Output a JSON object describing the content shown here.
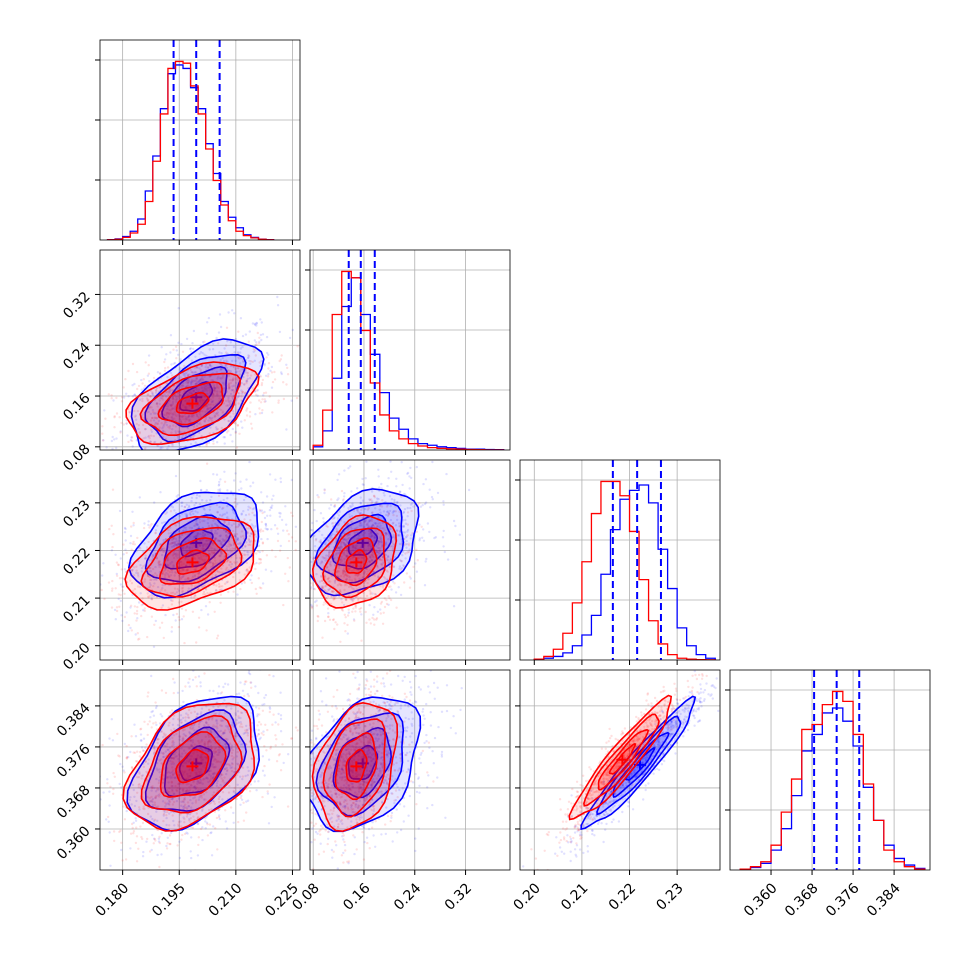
{
  "chart_data": {
    "type": "corner",
    "grid": true,
    "colors": {
      "series_a": "#0000ff",
      "series_b": "#ff0000",
      "grid": "#b0b0b0",
      "frame": "#000000"
    },
    "series": [
      {
        "color": "#0000ff"
      },
      {
        "color": "#ff0000"
      }
    ],
    "params": [
      {
        "range": [
          0.174,
          0.227
        ],
        "ticks": [
          "0.180",
          "0.195",
          "0.210",
          "0.225"
        ],
        "tick_values": [
          0.18,
          0.195,
          0.21,
          0.225
        ]
      },
      {
        "range": [
          0.075,
          0.39
        ],
        "ticks": [
          "0.08",
          "0.16",
          "0.24",
          "0.32"
        ],
        "tick_values": [
          0.08,
          0.16,
          0.24,
          0.32
        ]
      },
      {
        "range": [
          0.197,
          0.239
        ],
        "ticks": [
          "0.20",
          "0.21",
          "0.22",
          "0.23"
        ],
        "tick_values": [
          0.2,
          0.21,
          0.22,
          0.23
        ]
      },
      {
        "range": [
          0.352,
          0.391
        ],
        "ticks": [
          "0.360",
          "0.368",
          "0.376",
          "0.384"
        ],
        "tick_values": [
          0.36,
          0.368,
          0.376,
          0.384
        ]
      }
    ],
    "quantile_lines": [
      [
        0.1935,
        0.1995,
        0.2057
      ],
      [
        0.136,
        0.155,
        0.177
      ],
      [
        0.2165,
        0.2216,
        0.2266
      ],
      [
        0.3684,
        0.3728,
        0.3772
      ]
    ],
    "marginals": [
      {
        "bin_edges": [
          0.176,
          0.178,
          0.18,
          0.182,
          0.184,
          0.186,
          0.188,
          0.19,
          0.192,
          0.194,
          0.196,
          0.198,
          0.2,
          0.202,
          0.204,
          0.206,
          0.208,
          0.21,
          0.212,
          0.214,
          0.216,
          0.218,
          0.22
        ],
        "series_a": [
          0.2,
          0.6,
          2,
          5,
          12,
          28,
          48,
          75,
          95,
          100,
          98,
          87,
          75,
          55,
          38,
          22,
          13,
          7,
          3,
          1.5,
          0.5,
          0.2
        ],
        "series_b": [
          0.1,
          0.4,
          1.5,
          4,
          9,
          22,
          45,
          72,
          98,
          102,
          101,
          88,
          72,
          52,
          34,
          20,
          11,
          5,
          2.5,
          1.2,
          0.4,
          0.1
        ]
      },
      {
        "bin_edges": [
          0.08,
          0.095,
          0.11,
          0.125,
          0.14,
          0.155,
          0.17,
          0.185,
          0.2,
          0.215,
          0.23,
          0.245,
          0.26,
          0.275,
          0.29,
          0.305,
          0.32,
          0.335,
          0.35,
          0.365,
          0.38
        ],
        "series_a": [
          2,
          12,
          45,
          90,
          108,
          85,
          60,
          36,
          20,
          13,
          7,
          4,
          3,
          2,
          1.5,
          1,
          0.5,
          0.5,
          0.3,
          0.2
        ],
        "series_b": [
          3,
          25,
          85,
          112,
          108,
          75,
          42,
          22,
          12,
          7,
          4,
          2.5,
          1.5,
          1,
          0.7,
          0.5,
          0.3,
          0.2,
          0.1,
          0.1
        ]
      },
      {
        "bin_edges": [
          0.2,
          0.202,
          0.204,
          0.206,
          0.208,
          0.21,
          0.212,
          0.214,
          0.216,
          0.218,
          0.22,
          0.222,
          0.224,
          0.226,
          0.228,
          0.23,
          0.232,
          0.234,
          0.236,
          0.238
        ],
        "series_a": [
          0.2,
          1,
          2,
          4,
          8,
          14,
          25,
          48,
          73,
          90,
          95,
          98,
          88,
          62,
          40,
          18,
          8,
          3,
          1
        ],
        "series_b": [
          0.5,
          2,
          6,
          15,
          32,
          55,
          82,
          100,
          100,
          92,
          72,
          45,
          22,
          9,
          3,
          1,
          0.5,
          0.2,
          0.1
        ]
      },
      {
        "bin_edges": [
          0.354,
          0.356,
          0.358,
          0.36,
          0.362,
          0.364,
          0.366,
          0.368,
          0.37,
          0.372,
          0.374,
          0.376,
          0.378,
          0.38,
          0.382,
          0.384,
          0.386,
          0.388,
          0.39
        ],
        "series_a": [
          0.5,
          1.5,
          4,
          12,
          25,
          45,
          72,
          82,
          95,
          98,
          90,
          75,
          50,
          30,
          15,
          7,
          3,
          1
        ],
        "series_b": [
          0.5,
          2,
          5,
          15,
          35,
          55,
          85,
          88,
          100,
          108,
          102,
          82,
          52,
          30,
          12,
          5,
          2,
          0.5
        ]
      }
    ],
    "pairs": [
      {
        "x": 0,
        "y": 1,
        "series_a": {
          "center": [
            0.1995,
            0.158
          ],
          "sigma": [
            0.0085,
            0.045
          ],
          "rho": 0.55
        },
        "series_b": {
          "center": [
            0.1985,
            0.148
          ],
          "sigma": [
            0.0085,
            0.032
          ],
          "rho": 0.45
        }
      },
      {
        "x": 0,
        "y": 2,
        "series_a": {
          "center": [
            0.1995,
            0.2216
          ],
          "sigma": [
            0.0085,
            0.0055
          ],
          "rho": 0.42
        },
        "series_b": {
          "center": [
            0.1985,
            0.2175
          ],
          "sigma": [
            0.0085,
            0.0048
          ],
          "rho": 0.38
        }
      },
      {
        "x": 1,
        "y": 2,
        "series_a": {
          "center": [
            0.158,
            0.2216
          ],
          "sigma": [
            0.045,
            0.0055
          ],
          "rho": 0.35
        },
        "series_b": {
          "center": [
            0.148,
            0.2175
          ],
          "sigma": [
            0.032,
            0.0048
          ],
          "rho": 0.3
        }
      },
      {
        "x": 0,
        "y": 3,
        "series_a": {
          "center": [
            0.1995,
            0.3728
          ],
          "sigma": [
            0.0085,
            0.0065
          ],
          "rho": 0.42
        },
        "series_b": {
          "center": [
            0.1985,
            0.3722
          ],
          "sigma": [
            0.0085,
            0.0062
          ],
          "rho": 0.38
        }
      },
      {
        "x": 1,
        "y": 3,
        "series_a": {
          "center": [
            0.158,
            0.3728
          ],
          "sigma": [
            0.045,
            0.0065
          ],
          "rho": 0.35
        },
        "series_b": {
          "center": [
            0.148,
            0.3722
          ],
          "sigma": [
            0.032,
            0.0062
          ],
          "rho": 0.3
        }
      },
      {
        "x": 2,
        "y": 3,
        "series_a": {
          "center": [
            0.2222,
            0.3725
          ],
          "sigma": [
            0.0058,
            0.0062
          ],
          "rho": 0.95
        },
        "series_b": {
          "center": [
            0.2185,
            0.3735
          ],
          "sigma": [
            0.0052,
            0.0058
          ],
          "rho": 0.93
        }
      }
    ]
  }
}
